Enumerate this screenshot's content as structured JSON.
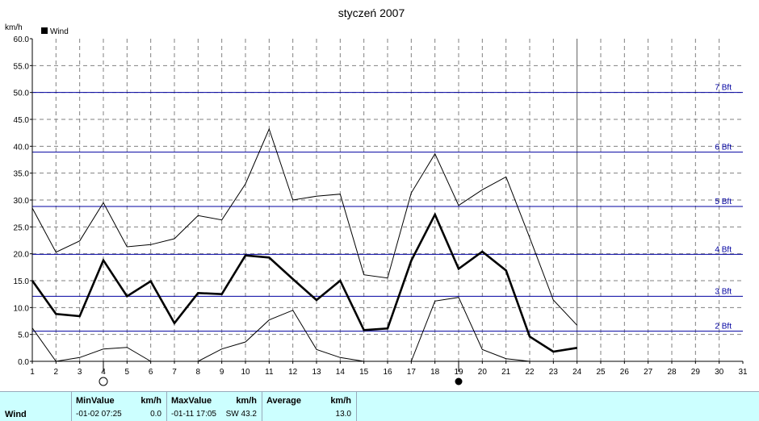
{
  "chart_data": {
    "type": "line",
    "title": "styczeń 2007",
    "ylabel": "km/h",
    "legend": "Wind",
    "legend_position": "top-left",
    "grid": true,
    "xlim": [
      1,
      31
    ],
    "ylim": [
      0,
      60
    ],
    "x_ticks": [
      "1",
      "2",
      "3",
      "4",
      "5",
      "6",
      "7",
      "8",
      "9",
      "10",
      "11",
      "12",
      "13",
      "14",
      "15",
      "16",
      "17",
      "18",
      "19",
      "20",
      "21",
      "22",
      "23",
      "24",
      "25",
      "26",
      "27",
      "28",
      "29",
      "30",
      "31"
    ],
    "y_ticks": [
      "0.0",
      "5.0",
      "10.0",
      "15.0",
      "20.0",
      "25.0",
      "30.0",
      "35.0",
      "40.0",
      "45.0",
      "50.0",
      "55.0",
      "60.0"
    ],
    "current_day_marker": 24,
    "series": [
      {
        "name": "Wind",
        "x": [
          1,
          2,
          3,
          4,
          5,
          6,
          7,
          8,
          9,
          10,
          11,
          12,
          13,
          14,
          15,
          16,
          17,
          18,
          19,
          20,
          21,
          22,
          23,
          24
        ],
        "values": [
          15.0,
          8.8,
          8.4,
          18.8,
          12.1,
          14.9,
          7.1,
          12.7,
          12.5,
          19.7,
          19.3,
          15.3,
          11.4,
          15.0,
          5.8,
          6.1,
          18.7,
          27.3,
          17.2,
          20.4,
          16.9,
          4.6,
          1.8,
          2.5
        ]
      },
      {
        "x": [
          1,
          2,
          3,
          4,
          5,
          6,
          7,
          8,
          9,
          10,
          11,
          12,
          13,
          14,
          15,
          16,
          17,
          18,
          19,
          20,
          21,
          22,
          23,
          24
        ],
        "values": [
          28.5,
          20.3,
          22.4,
          29.5,
          21.3,
          21.7,
          22.8,
          27.1,
          26.3,
          33.0,
          43.2,
          30.0,
          30.7,
          31.1,
          16.1,
          15.5,
          31.3,
          38.6,
          29.0,
          31.9,
          34.3,
          23.0,
          11.4,
          6.7
        ]
      },
      {
        "x": [
          1,
          2,
          3,
          4,
          5,
          6,
          7,
          8,
          9,
          10,
          11,
          12,
          13,
          14,
          15,
          16,
          17,
          18,
          19,
          20,
          21,
          22,
          23,
          24
        ],
        "values": [
          6.2,
          0.0,
          0.7,
          2.3,
          2.6,
          0.0,
          null,
          0.0,
          2.3,
          3.6,
          7.7,
          9.5,
          2.2,
          0.7,
          0.0,
          null,
          0.0,
          11.2,
          11.9,
          2.2,
          0.5,
          0.0,
          null,
          null
        ]
      }
    ],
    "beaufort_lines": [
      {
        "label": "2 Bft",
        "value": 5.6
      },
      {
        "label": "3 Bft",
        "value": 12.1
      },
      {
        "label": "4 Bft",
        "value": 19.9
      },
      {
        "label": "5 Bft",
        "value": 28.8
      },
      {
        "label": "6 Bft",
        "value": 38.9
      },
      {
        "label": "7 Bft",
        "value": 50.0
      }
    ],
    "moon_phases": [
      {
        "day": 4,
        "phase": "full"
      },
      {
        "day": 19,
        "phase": "new"
      }
    ],
    "colors": {
      "grid": "#808080",
      "beaufort": "#0000a0",
      "series": "#000000",
      "footer": "#ccffff"
    }
  },
  "stats": {
    "row_label": "Wind",
    "min_header": "MinValue",
    "min_unit": "km/h",
    "min_date": "-01-02  07:25",
    "min_value": "0.0",
    "max_header": "MaxValue",
    "max_unit": "km/h",
    "max_date": "-01-11  17:05",
    "max_value": "SW  43.2",
    "avg_header": "Average",
    "avg_unit": "km/h",
    "avg_value": "13.0"
  }
}
